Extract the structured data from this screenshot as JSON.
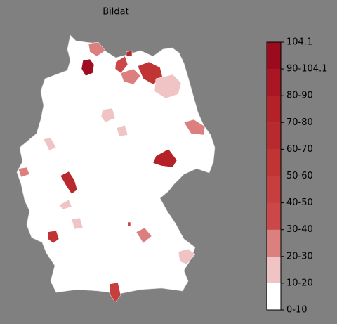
{
  "title": "Bildat",
  "colorbar": {
    "labels": [
      "0-10",
      "10-20",
      "20-30",
      "30-40",
      "40-50",
      "50-60",
      "60-70",
      "70-80",
      "80-90",
      "90-104.1",
      "104.1"
    ],
    "colors": [
      "#ffffff",
      "#f0c4c4",
      "#db7f7f",
      "#cc4848",
      "#c63e3e",
      "#c03434",
      "#b92a2e",
      "#b42228",
      "#aa1624",
      "#9c0a1e"
    ]
  }
}
